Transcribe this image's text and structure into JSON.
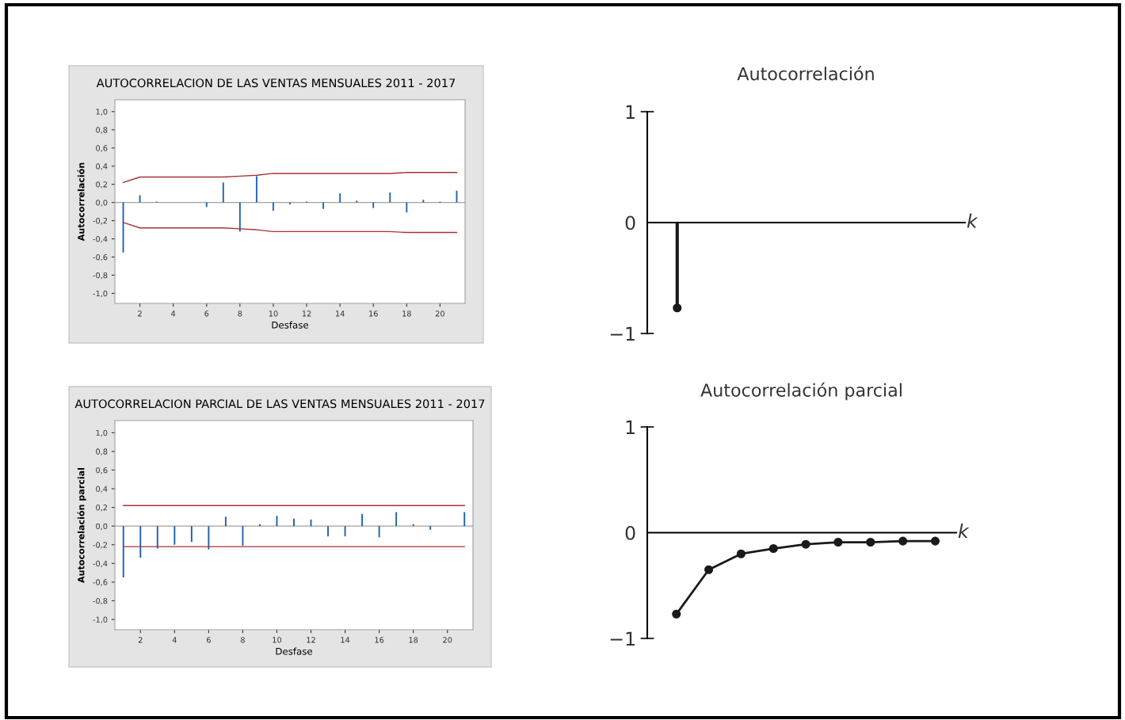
{
  "chart_data": [
    {
      "type": "bar",
      "title": "AUTOCORRELACION DE LAS VENTAS MENSUALES 2011 - 2017",
      "xlabel": "Desfase",
      "ylabel": "Autocorrelación",
      "x": [
        1,
        2,
        3,
        4,
        5,
        6,
        7,
        8,
        9,
        10,
        11,
        12,
        13,
        14,
        15,
        16,
        17,
        18,
        19,
        20,
        21
      ],
      "series": [
        {
          "color": "#1f63b0",
          "values": [
            -0.55,
            0.08,
            0.01,
            0,
            0,
            -0.05,
            0.22,
            -0.32,
            0.29,
            -0.09,
            -0.02,
            0.01,
            -0.07,
            0.1,
            0.02,
            -0.06,
            0.11,
            -0.11,
            0.03,
            0.01,
            0.13
          ]
        },
        {
          "type": "line",
          "color": "#a83232",
          "x": [
            1,
            2,
            7,
            8,
            9,
            10,
            17,
            18,
            21
          ],
          "values": [
            0.22,
            0.28,
            0.28,
            0.29,
            0.3,
            0.32,
            0.32,
            0.33,
            0.33
          ]
        },
        {
          "type": "line",
          "color": "#a83232",
          "x": [
            1,
            2,
            7,
            8,
            9,
            10,
            17,
            18,
            21
          ],
          "values": [
            -0.22,
            -0.28,
            -0.28,
            -0.29,
            -0.3,
            -0.32,
            -0.32,
            -0.33,
            -0.33
          ]
        }
      ],
      "xlim": [
        0.5,
        21.5
      ],
      "ylim": [
        -1.11,
        1.13
      ],
      "xticks": [
        2,
        4,
        6,
        8,
        10,
        12,
        14,
        16,
        18,
        20
      ],
      "yticks": [
        {
          "value": -1.0,
          "label": "-1,0"
        },
        {
          "value": -0.8,
          "label": "-0,8"
        },
        {
          "value": -0.6,
          "label": "-0,6"
        },
        {
          "value": -0.4,
          "label": "-0,4"
        },
        {
          "value": -0.2,
          "label": "-0,2"
        },
        {
          "value": 0.0,
          "label": "0,0"
        },
        {
          "value": 0.2,
          "label": "0,2"
        },
        {
          "value": 0.4,
          "label": "0,4"
        },
        {
          "value": 0.6,
          "label": "0,6"
        },
        {
          "value": 0.8,
          "label": "0,8"
        },
        {
          "value": 1.0,
          "label": "1,0"
        }
      ],
      "ref_lines": [
        {
          "axis": "y",
          "value": 0,
          "color": "#a0a0a0"
        }
      ]
    },
    {
      "type": "bar",
      "title": "AUTOCORRELACION PARCIAL DE LAS VENTAS MENSUALES 2011 - 2017",
      "xlabel": "Desfase",
      "ylabel": "Autocorrelación parcial",
      "x": [
        1,
        2,
        3,
        4,
        5,
        6,
        7,
        8,
        9,
        10,
        11,
        12,
        13,
        14,
        15,
        16,
        17,
        18,
        19,
        20,
        21
      ],
      "series": [
        {
          "color": "#1f63b0",
          "values": [
            -0.55,
            -0.34,
            -0.24,
            -0.2,
            -0.17,
            -0.25,
            0.1,
            -0.21,
            0.02,
            0.11,
            0.08,
            0.07,
            -0.11,
            -0.11,
            0.13,
            -0.12,
            0.15,
            0.02,
            -0.04,
            0,
            0.15
          ]
        },
        {
          "type": "line",
          "color": "#a83232",
          "x": [
            1,
            21
          ],
          "values": [
            0.22,
            0.22
          ]
        },
        {
          "type": "line",
          "color": "#a83232",
          "x": [
            1,
            21
          ],
          "values": [
            -0.22,
            -0.22
          ]
        }
      ],
      "xlim": [
        0.5,
        21.5
      ],
      "ylim": [
        -1.11,
        1.13
      ],
      "xticks": [
        2,
        4,
        6,
        8,
        10,
        12,
        14,
        16,
        18,
        20
      ],
      "yticks": [
        {
          "value": -1.0,
          "label": "-1,0"
        },
        {
          "value": -0.8,
          "label": "-0,8"
        },
        {
          "value": -0.6,
          "label": "-0,6"
        },
        {
          "value": -0.4,
          "label": "-0,4"
        },
        {
          "value": -0.2,
          "label": "-0,2"
        },
        {
          "value": 0.0,
          "label": "0,0"
        },
        {
          "value": 0.2,
          "label": "0,2"
        },
        {
          "value": 0.4,
          "label": "0,4"
        },
        {
          "value": 0.6,
          "label": "0,6"
        },
        {
          "value": 0.8,
          "label": "0,8"
        },
        {
          "value": 1.0,
          "label": "1,0"
        }
      ],
      "ref_lines": [
        {
          "axis": "y",
          "value": 0,
          "color": "#a0a0a0"
        }
      ]
    },
    {
      "type": "lollipop",
      "title": "Autocorrelación",
      "xlabel": "k",
      "categories": [
        null,
        null,
        null,
        null,
        null,
        null,
        null,
        null,
        null
      ],
      "series": [
        {
          "color": "#1a1a1a",
          "values": [
            -0.77,
            null,
            null,
            null,
            null,
            null,
            null,
            null,
            null
          ]
        }
      ],
      "marker": "circle",
      "ylim": [
        -1,
        1
      ],
      "yticks": [
        {
          "value": -1,
          "label": "−1"
        },
        0,
        1
      ]
    },
    {
      "type": "line",
      "title": "Autocorrelación parcial",
      "xlabel": "k",
      "categories": [
        null,
        null,
        null,
        null,
        null,
        null,
        null,
        null,
        null
      ],
      "series": [
        {
          "color": "#1a1a1a",
          "values": [
            -0.77,
            -0.35,
            -0.2,
            -0.15,
            -0.11,
            -0.09,
            -0.09,
            -0.08,
            -0.08
          ]
        }
      ],
      "marker": "circle",
      "line_style": "solid",
      "ylim": [
        -1,
        1
      ],
      "yticks": [
        {
          "value": -1,
          "label": "−1"
        },
        0,
        1
      ]
    }
  ]
}
